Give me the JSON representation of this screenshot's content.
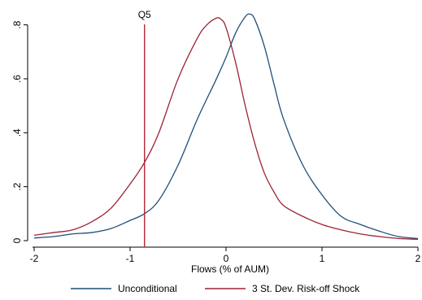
{
  "chart_data": {
    "type": "line",
    "title": "",
    "xlabel": "Flows (% of AUM)",
    "ylabel": "",
    "xlim": [
      -2,
      2
    ],
    "ylim": [
      0,
      0.85
    ],
    "x_ticks": [
      -2,
      -1,
      0,
      1,
      2
    ],
    "x_tick_labels": [
      "-2",
      "-1",
      "0",
      "1",
      "2"
    ],
    "y_ticks": [
      0,
      0.2,
      0.4,
      0.6,
      0.8
    ],
    "y_tick_labels": [
      "0",
      ".2",
      ".4",
      ".6",
      ".8"
    ],
    "grid": false,
    "legend_position": "bottom",
    "reference_line": {
      "x": -0.85,
      "label": "Q5",
      "color": "#b2283c"
    },
    "series": [
      {
        "name": "Unconditional",
        "color": "#1f4e79",
        "x": [
          -2,
          -1.8,
          -1.6,
          -1.4,
          -1.2,
          -1.0,
          -0.85,
          -0.7,
          -0.5,
          -0.3,
          -0.1,
          0.0,
          0.1,
          0.2,
          0.25,
          0.3,
          0.4,
          0.5,
          0.6,
          0.8,
          1.0,
          1.2,
          1.4,
          1.6,
          1.8,
          2.0
        ],
        "y": [
          0.01,
          0.015,
          0.025,
          0.03,
          0.045,
          0.075,
          0.1,
          0.15,
          0.28,
          0.45,
          0.6,
          0.68,
          0.77,
          0.83,
          0.84,
          0.82,
          0.72,
          0.58,
          0.45,
          0.28,
          0.17,
          0.09,
          0.06,
          0.035,
          0.015,
          0.008
        ]
      },
      {
        "name": "3 St. Dev. Risk-off Shock",
        "color": "#9b2335",
        "x": [
          -2,
          -1.8,
          -1.6,
          -1.4,
          -1.2,
          -1.0,
          -0.85,
          -0.7,
          -0.5,
          -0.3,
          -0.2,
          -0.1,
          -0.05,
          0.0,
          0.1,
          0.2,
          0.3,
          0.4,
          0.5,
          0.6,
          0.8,
          1.0,
          1.2,
          1.4,
          1.6,
          1.8,
          2.0
        ],
        "y": [
          0.02,
          0.03,
          0.04,
          0.07,
          0.12,
          0.21,
          0.29,
          0.4,
          0.6,
          0.75,
          0.8,
          0.825,
          0.82,
          0.79,
          0.66,
          0.5,
          0.36,
          0.25,
          0.18,
          0.13,
          0.09,
          0.06,
          0.04,
          0.025,
          0.015,
          0.008,
          0.005
        ]
      }
    ]
  }
}
